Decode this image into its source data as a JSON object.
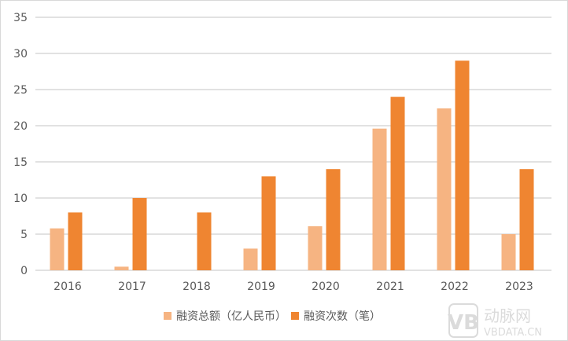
{
  "chart_data": {
    "type": "bar",
    "categories": [
      "2016",
      "2017",
      "2018",
      "2019",
      "2020",
      "2021",
      "2022",
      "2023"
    ],
    "series": [
      {
        "name": "融资总额（亿人民币）",
        "color": "#F6B482",
        "values": [
          5.8,
          0.5,
          0,
          3.0,
          6.1,
          19.6,
          22.4,
          5.0
        ]
      },
      {
        "name": "融资次数（笔）",
        "color": "#EF8531",
        "values": [
          8,
          10,
          8,
          13,
          14,
          24,
          29,
          14
        ]
      }
    ],
    "title": "",
    "xlabel": "",
    "ylabel": "",
    "ylim": [
      0,
      35
    ],
    "yticks": [
      0,
      5,
      10,
      15,
      20,
      25,
      30,
      35
    ],
    "grid": true,
    "legend": "bottom"
  },
  "watermark": {
    "text_cn": "动脉网",
    "text_en": "VBDATA.CN",
    "logo": "VB"
  }
}
